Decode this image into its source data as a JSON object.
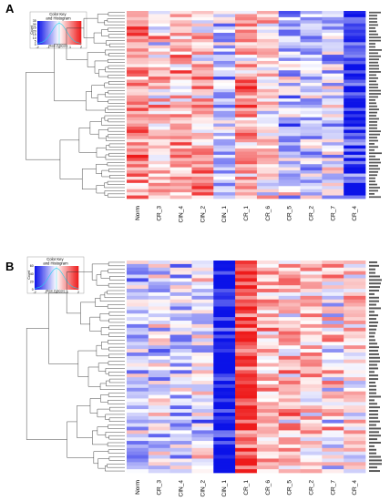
{
  "colors": {
    "low": "#0b12e8",
    "mid": "#ffffff",
    "high": "#ee1b1b",
    "dendrogram": "#333333",
    "key_histogram": "#22d3ee"
  },
  "panels": [
    {
      "letter": "A",
      "color_key": {
        "title": "Color Key\nand Histogram",
        "xlabel": "Row Z-Score",
        "ylabel": "Count",
        "xticks": [
          "-2",
          "-1",
          "0",
          "1",
          "2"
        ],
        "yticks": [
          "0",
          "5",
          "10",
          "15",
          "20",
          "25",
          "30",
          "35"
        ]
      },
      "columns": [
        "Norm",
        "CR_3",
        "CIN_4",
        "CIN_2",
        "CIN_1",
        "CR_1",
        "CR_6",
        "CR_5",
        "CR_2",
        "CR_7",
        "CR_4"
      ],
      "n_rows": 60
    },
    {
      "letter": "B",
      "color_key": {
        "title": "Color Key\nand Histogram",
        "xlabel": "Row Z-Score",
        "ylabel": "Count",
        "xticks": [
          "-2",
          "-1",
          "0",
          "1",
          "2"
        ],
        "yticks": [
          "0",
          "20",
          "40",
          "60"
        ]
      },
      "columns": [
        "Norm",
        "CR_3",
        "CIN_4",
        "CIN_2",
        "CIN_1",
        "CR_1",
        "CR_6",
        "CR_5",
        "CR_2",
        "CR_7",
        "CR_4"
      ],
      "n_rows": 60
    }
  ],
  "chart_data": [
    {
      "type": "heatmap",
      "title": "",
      "columns": [
        "Norm",
        "CR_3",
        "CIN_4",
        "CIN_2",
        "CIN_1",
        "CR_1",
        "CR_6",
        "CR_5",
        "CR_2",
        "CR_7",
        "CR_4"
      ],
      "value_range": [
        -2,
        2
      ],
      "color_scale": "blue-white-red (Row Z-Score)",
      "column_profile": [
        0.95,
        0.3,
        0.7,
        0.55,
        -0.6,
        0.9,
        0.2,
        -0.5,
        -0.5,
        -0.4,
        -1.7
      ]
    },
    {
      "type": "heatmap",
      "title": "",
      "columns": [
        "Norm",
        "CR_3",
        "CIN_4",
        "CIN_2",
        "CIN_1",
        "CR_1",
        "CR_6",
        "CR_5",
        "CR_2",
        "CR_7",
        "CR_4"
      ],
      "value_range": [
        -2,
        2
      ],
      "color_scale": "blue-white-red (Row Z-Score)",
      "column_profile": [
        -0.45,
        -0.25,
        -0.35,
        -0.25,
        -2.0,
        1.6,
        0.55,
        0.55,
        0.45,
        0.2,
        0.3
      ]
    }
  ]
}
